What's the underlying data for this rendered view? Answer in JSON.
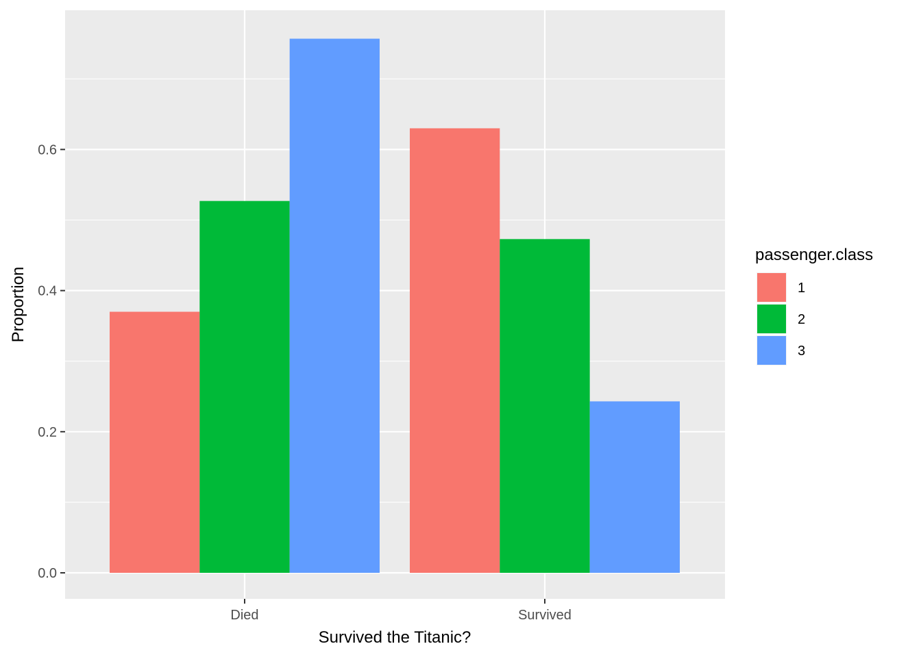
{
  "chart_data": {
    "type": "bar",
    "xlabel": "Survived the Titanic?",
    "ylabel": "Proportion",
    "categories": [
      "Died",
      "Survived"
    ],
    "series": [
      {
        "name": "1",
        "color": "#F8766D",
        "values": [
          0.37,
          0.63
        ]
      },
      {
        "name": "2",
        "color": "#00BA38",
        "values": [
          0.527,
          0.473
        ]
      },
      {
        "name": "3",
        "color": "#619CFF",
        "values": [
          0.757,
          0.243
        ]
      }
    ],
    "yticks": [
      0.0,
      0.2,
      0.4,
      0.6
    ],
    "ytick_labels": [
      "0.0",
      "0.2",
      "0.4",
      "0.6"
    ],
    "ylim": [
      -0.0379,
      0.795
    ],
    "grid": true,
    "panel_background": "#EBEBEB",
    "legend": {
      "title": "passenger.class",
      "position": "right"
    }
  }
}
